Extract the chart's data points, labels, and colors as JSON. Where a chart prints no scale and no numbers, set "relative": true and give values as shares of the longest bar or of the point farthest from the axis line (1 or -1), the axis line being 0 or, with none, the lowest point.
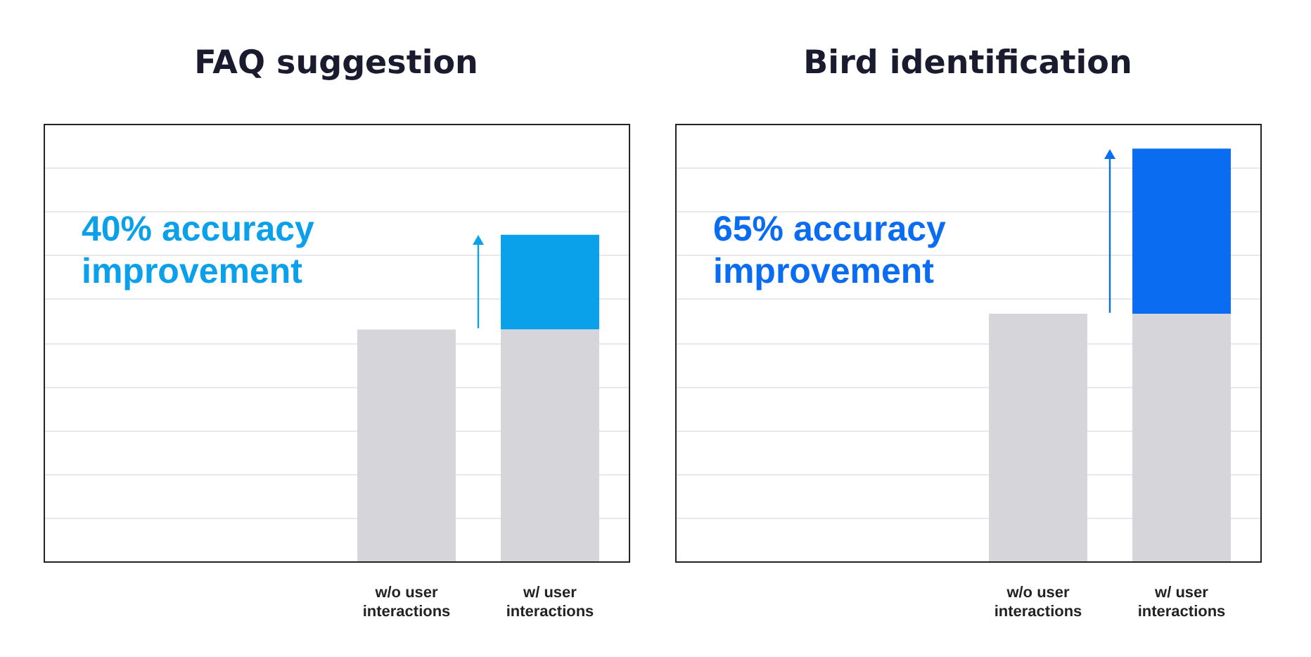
{
  "chart_data": [
    {
      "type": "bar",
      "title": "FAQ suggestion",
      "categories": [
        "w/o user interactions",
        "w/ user interactions"
      ],
      "stacked": true,
      "relative": true,
      "grid": "y",
      "annotations": [
        "40% accuracy improvement"
      ],
      "series": [
        {
          "color": "#d6d5da",
          "values": [
            0.71,
            0.71
          ]
        },
        {
          "color": "#0aa0ea",
          "values": [
            null,
            0.29
          ]
        }
      ]
    },
    {
      "type": "bar",
      "title": "Bird identification",
      "categories": [
        "w/o user interactions",
        "w/ user interactions"
      ],
      "stacked": true,
      "relative": true,
      "grid": "y",
      "annotations": [
        "65% accuracy improvement"
      ],
      "series": [
        {
          "color": "#d6d5da",
          "values": [
            0.6,
            0.6
          ]
        },
        {
          "color": "#0a6cf0",
          "values": [
            null,
            0.4
          ]
        }
      ]
    }
  ]
}
